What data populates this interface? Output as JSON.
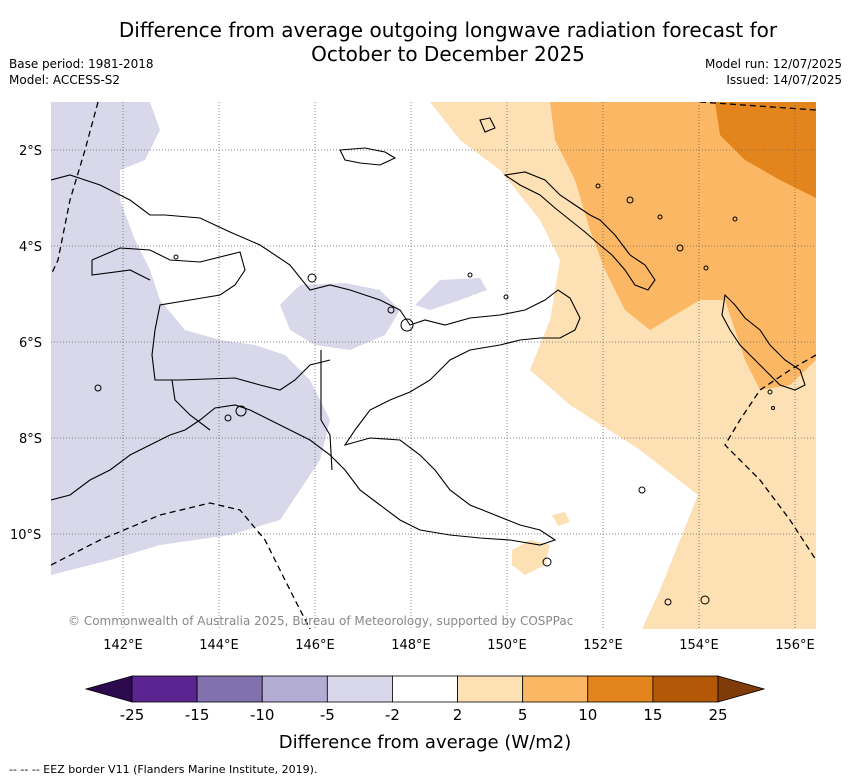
{
  "title": {
    "line1": "Difference from average outgoing longwave radiation forecast for",
    "line2": "October to December 2025"
  },
  "meta_left": {
    "base_period": "Base period: 1981-2018",
    "model": "Model: ACCESS-S2"
  },
  "meta_right": {
    "model_run": "Model run: 12/07/2025",
    "issued": "Issued: 14/07/2025"
  },
  "map": {
    "lat_labels": [
      "2°S",
      "4°S",
      "6°S",
      "8°S",
      "10°S"
    ],
    "lon_labels": [
      "142°E",
      "144°E",
      "146°E",
      "148°E",
      "150°E",
      "152°E",
      "154°E",
      "156°E"
    ],
    "copyright": "© Commonwealth of Australia 2025, Bureau of Meteorology, supported by COSPPac",
    "colors": {
      "neg_-5_-2": "#d8d8ea",
      "pos_2_5": "#fde0b4",
      "pos_5_10": "#fbb764",
      "pos_10_15": "#e3841c"
    }
  },
  "colorbar": {
    "ticks": [
      "-25",
      "-15",
      "-10",
      "-5",
      "-2",
      "2",
      "5",
      "10",
      "15",
      "25"
    ],
    "colors": [
      "#2d0a4e",
      "#5a2590",
      "#8172ae",
      "#b3acd3",
      "#d8d8ea",
      "#ffffff",
      "#fde0b4",
      "#fbb764",
      "#e3841c",
      "#b35806",
      "#7f3b08"
    ],
    "title": "Difference from average (W/m2)"
  },
  "footnote": "--  --  -- EEZ border V11 (Flanders Marine Institute, 2019)."
}
